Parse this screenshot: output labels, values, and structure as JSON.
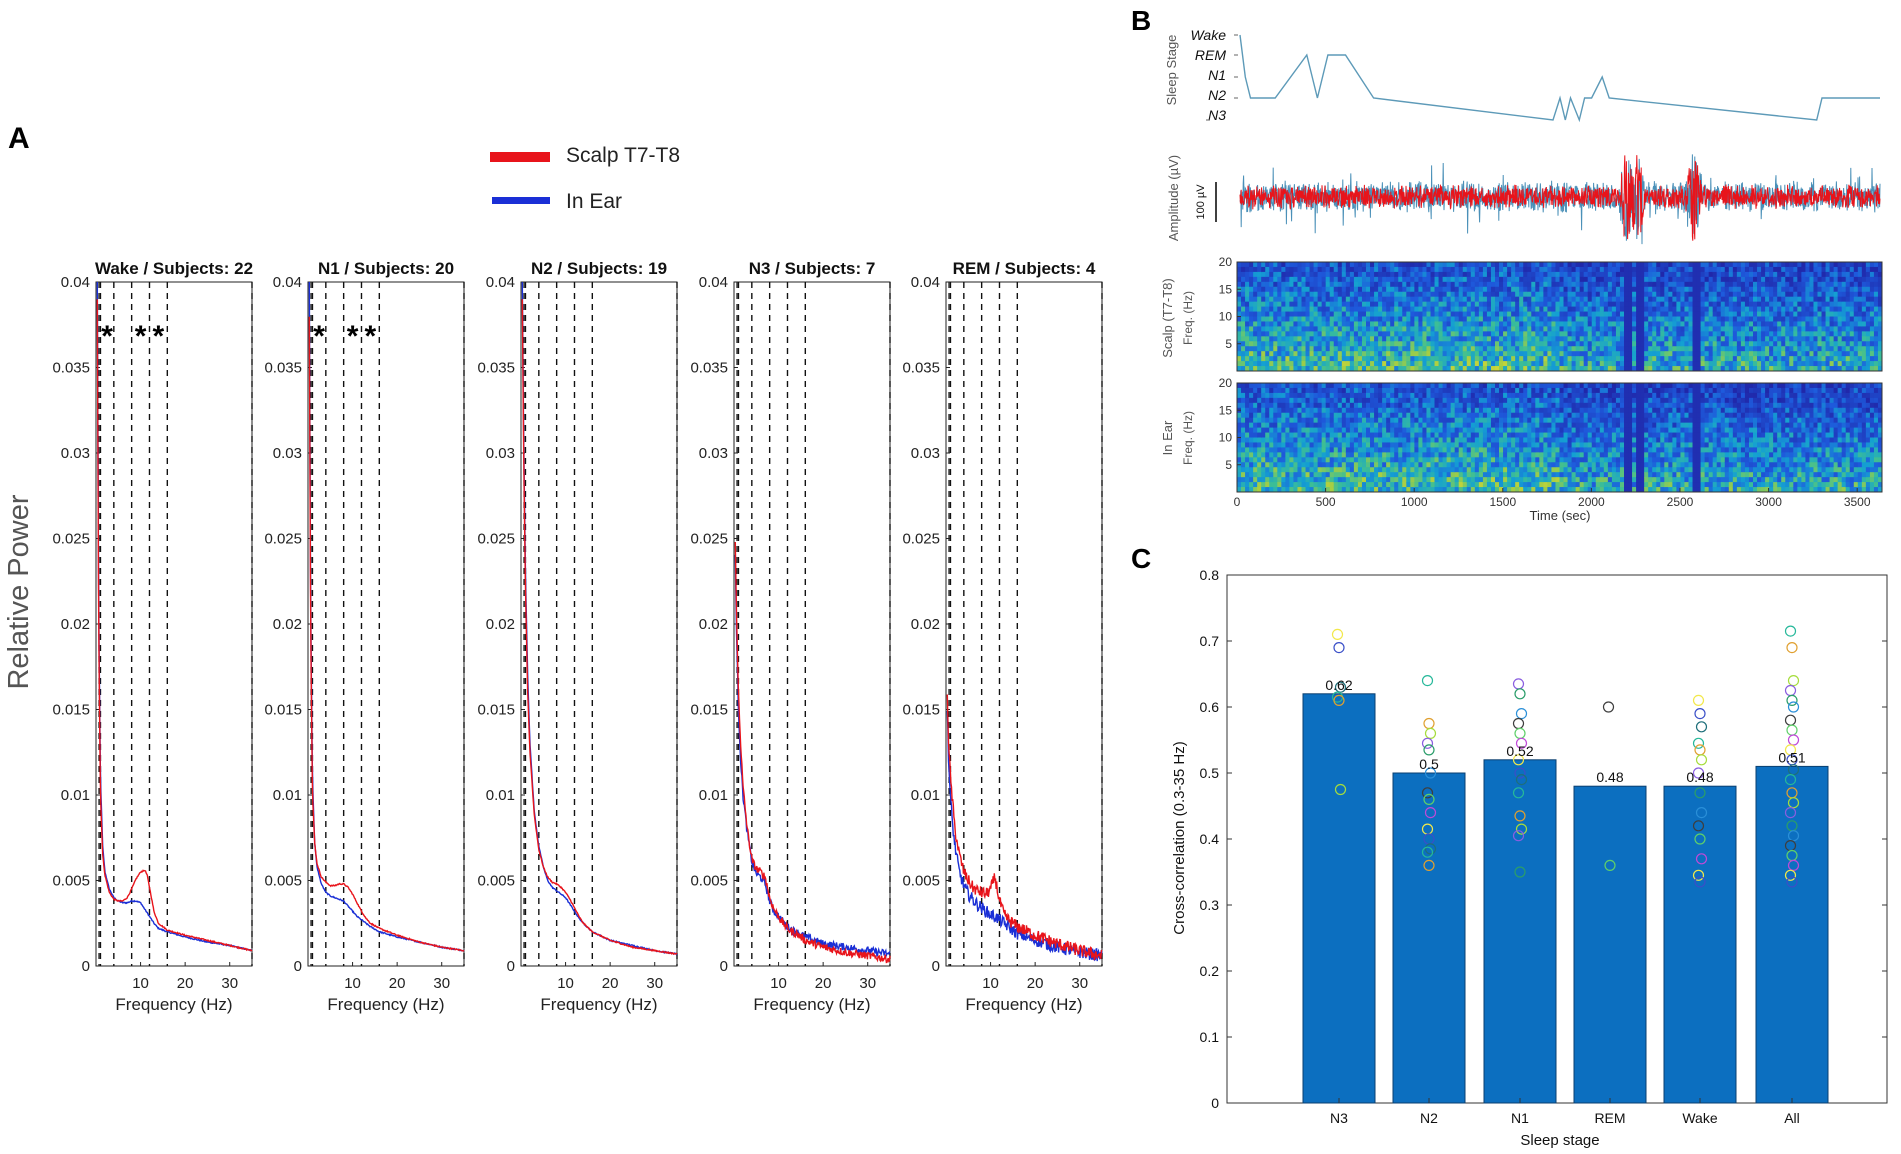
{
  "panels": {
    "a": "A",
    "b": "B",
    "c": "C"
  },
  "colors": {
    "scalp": "#e8141b",
    "ear": "#1a2fd6",
    "bar": "#0c6fc0",
    "trace": "#4a90b8",
    "hypnogram": "#5d9ab8"
  },
  "panel_a": {
    "ylabel": "Relative Power",
    "legend": [
      {
        "label": "Scalp T7-T8",
        "color": "#e8141b"
      },
      {
        "label": "In Ear",
        "color": "#1a2fd6"
      }
    ],
    "yticks": [
      "0",
      "0.005",
      "0.01",
      "0.015",
      "0.02",
      "0.025",
      "0.03",
      "0.035",
      "0.04"
    ],
    "xticks": [
      "10",
      "20",
      "30"
    ],
    "xlabel": "Frequency (Hz)",
    "stars": "*"
  },
  "chart_data": [
    {
      "type": "line",
      "id": "wake",
      "title": "Wake / Subjects: 22",
      "xlabel": "Frequency (Hz)",
      "ylabel": "Relative Power",
      "xlim": [
        0,
        35
      ],
      "ylim": [
        0,
        0.04
      ],
      "band_lines_hz": [
        1,
        4,
        8,
        12,
        16,
        35
      ],
      "significance_marks_hz": [
        2.5,
        10,
        14
      ],
      "series": [
        {
          "name": "Scalp T7-T8",
          "x": [
            0.3,
            0.6,
            1,
            1.5,
            2,
            3,
            4,
            5,
            6,
            7,
            8,
            9,
            10,
            11,
            11.5,
            12,
            13,
            14,
            16,
            20,
            25,
            30,
            35
          ],
          "y": [
            0.039,
            0.02,
            0.01,
            0.0065,
            0.0053,
            0.0043,
            0.0039,
            0.0038,
            0.0038,
            0.004,
            0.0045,
            0.0051,
            0.0055,
            0.0056,
            0.0053,
            0.0046,
            0.0032,
            0.0025,
            0.0021,
            0.0018,
            0.0015,
            0.0012,
            0.0009
          ]
        },
        {
          "name": "In Ear",
          "x": [
            0.3,
            0.6,
            1,
            1.5,
            2,
            3,
            4,
            5,
            6,
            7,
            8,
            9,
            10,
            11,
            12,
            13,
            14,
            16,
            20,
            25,
            30,
            35
          ],
          "y": [
            0.04,
            0.021,
            0.011,
            0.007,
            0.0055,
            0.0045,
            0.004,
            0.0038,
            0.0037,
            0.0037,
            0.0038,
            0.0038,
            0.0037,
            0.0033,
            0.0029,
            0.0025,
            0.0022,
            0.002,
            0.0017,
            0.0014,
            0.0012,
            0.0009
          ]
        }
      ]
    },
    {
      "type": "line",
      "id": "n1",
      "title": "N1 / Subjects: 20",
      "xlabel": "Frequency (Hz)",
      "ylabel": "Relative Power",
      "xlim": [
        0,
        35
      ],
      "ylim": [
        0,
        0.04
      ],
      "band_lines_hz": [
        1,
        4,
        8,
        12,
        16,
        35
      ],
      "significance_marks_hz": [
        2.5,
        10,
        14
      ],
      "series": [
        {
          "name": "Scalp T7-T8",
          "x": [
            0.3,
            0.6,
            1,
            1.5,
            2,
            3,
            4,
            5,
            6,
            7,
            8,
            9,
            10,
            11,
            12,
            13,
            14,
            16,
            20,
            25,
            30,
            35
          ],
          "y": [
            0.038,
            0.02,
            0.01,
            0.0072,
            0.006,
            0.0052,
            0.0049,
            0.0047,
            0.0047,
            0.0048,
            0.0048,
            0.0046,
            0.0042,
            0.0037,
            0.0032,
            0.0028,
            0.0025,
            0.0022,
            0.0018,
            0.0014,
            0.0011,
            0.0009
          ]
        },
        {
          "name": "In Ear",
          "x": [
            0.3,
            0.6,
            1,
            1.5,
            2,
            3,
            4,
            5,
            6,
            7,
            8,
            9,
            10,
            11,
            12,
            13,
            14,
            16,
            20,
            25,
            30,
            35
          ],
          "y": [
            0.04,
            0.021,
            0.011,
            0.0072,
            0.0058,
            0.0048,
            0.0043,
            0.0041,
            0.004,
            0.0039,
            0.0038,
            0.0035,
            0.0032,
            0.0029,
            0.0027,
            0.0025,
            0.0023,
            0.002,
            0.0017,
            0.0014,
            0.0011,
            0.0009
          ]
        }
      ]
    },
    {
      "type": "line",
      "id": "n2",
      "title": "N2 / Subjects: 19",
      "xlabel": "Frequency (Hz)",
      "ylabel": "Relative Power",
      "xlim": [
        0,
        35
      ],
      "ylim": [
        0,
        0.04
      ],
      "band_lines_hz": [
        1,
        4,
        8,
        12,
        16,
        35
      ],
      "significance_marks_hz": [],
      "series": [
        {
          "name": "Scalp T7-T8",
          "x": [
            0.3,
            0.6,
            1,
            1.5,
            2,
            3,
            4,
            5,
            6,
            7,
            8,
            9,
            10,
            11,
            12,
            13,
            14,
            16,
            20,
            25,
            30,
            35
          ],
          "y": [
            0.039,
            0.03,
            0.022,
            0.016,
            0.0125,
            0.0088,
            0.0068,
            0.0058,
            0.0052,
            0.0049,
            0.0048,
            0.0046,
            0.0043,
            0.0039,
            0.0034,
            0.0029,
            0.0025,
            0.002,
            0.0015,
            0.0011,
            0.0009,
            0.0007
          ]
        },
        {
          "name": "In Ear",
          "x": [
            0.3,
            0.6,
            1,
            1.5,
            2,
            3,
            4,
            5,
            6,
            7,
            8,
            9,
            10,
            11,
            12,
            13,
            14,
            16,
            20,
            25,
            30,
            35
          ],
          "y": [
            0.04,
            0.031,
            0.023,
            0.017,
            0.013,
            0.009,
            0.007,
            0.0058,
            0.005,
            0.0046,
            0.0044,
            0.0042,
            0.004,
            0.0036,
            0.0032,
            0.0028,
            0.0025,
            0.002,
            0.0015,
            0.0012,
            0.0009,
            0.0007
          ]
        }
      ]
    },
    {
      "type": "line",
      "id": "n3",
      "title": "N3 / Subjects: 7",
      "xlabel": "Frequency (Hz)",
      "ylabel": "Relative Power",
      "xlim": [
        0,
        35
      ],
      "ylim": [
        0,
        0.04
      ],
      "band_lines_hz": [
        1,
        4,
        8,
        12,
        16,
        35
      ],
      "significance_marks_hz": [],
      "series": [
        {
          "name": "Scalp T7-T8",
          "x": [
            0.3,
            0.6,
            1,
            1.5,
            2,
            3,
            4,
            5,
            6,
            7,
            8,
            9,
            10,
            11,
            12,
            13,
            14,
            16,
            20,
            25,
            30,
            35
          ],
          "y": [
            0.025,
            0.02,
            0.016,
            0.013,
            0.0105,
            0.008,
            0.0062,
            0.0057,
            0.0055,
            0.0052,
            0.004,
            0.0033,
            0.0029,
            0.0025,
            0.0022,
            0.002,
            0.0019,
            0.0015,
            0.0011,
            0.0008,
            0.0006,
            0.0004
          ]
        },
        {
          "name": "In Ear",
          "x": [
            0.3,
            0.6,
            1,
            1.5,
            2,
            3,
            4,
            5,
            6,
            7,
            8,
            9,
            10,
            11,
            12,
            13,
            14,
            16,
            20,
            25,
            30,
            35
          ],
          "y": [
            0.024,
            0.019,
            0.015,
            0.012,
            0.01,
            0.0078,
            0.0061,
            0.0054,
            0.0052,
            0.0048,
            0.0038,
            0.0032,
            0.0029,
            0.0026,
            0.0023,
            0.0021,
            0.002,
            0.0017,
            0.0013,
            0.0011,
            0.0009,
            0.0007
          ]
        }
      ]
    },
    {
      "type": "line",
      "id": "rem",
      "title": "REM / Subjects: 4",
      "xlabel": "Frequency (Hz)",
      "ylabel": "Relative Power",
      "xlim": [
        0,
        35
      ],
      "ylim": [
        0,
        0.04
      ],
      "band_lines_hz": [
        1,
        4,
        8,
        12,
        16,
        35
      ],
      "significance_marks_hz": [],
      "series": [
        {
          "name": "Scalp T7-T8",
          "x": [
            0.3,
            0.6,
            1,
            1.5,
            2,
            3,
            4,
            5,
            6,
            7,
            8,
            9,
            10,
            11,
            12,
            13,
            14,
            16,
            20,
            25,
            30,
            35
          ],
          "y": [
            0.016,
            0.013,
            0.011,
            0.0095,
            0.008,
            0.0065,
            0.0055,
            0.005,
            0.0046,
            0.0044,
            0.0043,
            0.0042,
            0.0045,
            0.0052,
            0.0038,
            0.003,
            0.0027,
            0.0023,
            0.0018,
            0.0013,
            0.0009,
            0.0006
          ]
        },
        {
          "name": "In Ear",
          "x": [
            0.3,
            0.6,
            1,
            1.5,
            2,
            3,
            4,
            5,
            6,
            7,
            8,
            9,
            10,
            11,
            12,
            13,
            14,
            16,
            20,
            25,
            30,
            35
          ],
          "y": [
            0.015,
            0.012,
            0.0098,
            0.0082,
            0.007,
            0.0055,
            0.0047,
            0.0042,
            0.0039,
            0.0036,
            0.0034,
            0.0032,
            0.003,
            0.0029,
            0.0027,
            0.0025,
            0.0023,
            0.0019,
            0.0015,
            0.0011,
            0.0008,
            0.0006
          ]
        }
      ]
    },
    {
      "type": "bar",
      "id": "xcorr",
      "categories": [
        "N3",
        "N2",
        "N1",
        "REM",
        "Wake",
        "All"
      ],
      "values": [
        0.62,
        0.5,
        0.52,
        0.48,
        0.48,
        0.51
      ],
      "value_labels": [
        "0.62",
        "0.5",
        "0.52",
        "0.48",
        "0.48",
        "0.51"
      ],
      "xlabel": "Sleep stage",
      "ylabel": "Cross-correlation (0.3-35 Hz)",
      "ylim": [
        0,
        0.8
      ],
      "yticks": [
        "0",
        "0.1",
        "0.2",
        "0.3",
        "0.4",
        "0.5",
        "0.6",
        "0.7",
        "0.8"
      ],
      "subject_points": [
        [
          0.71,
          0.69,
          0.63,
          0.615,
          0.61,
          0.475
        ],
        [
          0.64,
          0.575,
          0.56,
          0.545,
          0.535,
          0.5,
          0.47,
          0.46,
          0.44,
          0.415,
          0.4,
          0.385,
          0.38,
          0.36
        ],
        [
          0.635,
          0.62,
          0.59,
          0.575,
          0.56,
          0.545,
          0.52,
          0.5,
          0.49,
          0.47,
          0.435,
          0.415,
          0.405,
          0.35
        ],
        [
          0.6,
          0.36
        ],
        [
          0.61,
          0.59,
          0.57,
          0.545,
          0.535,
          0.52,
          0.5,
          0.47,
          0.44,
          0.42,
          0.4,
          0.37,
          0.345,
          0.335
        ],
        [
          0.715,
          0.69,
          0.64,
          0.625,
          0.61,
          0.6,
          0.58,
          0.565,
          0.55,
          0.535,
          0.52,
          0.505,
          0.49,
          0.47,
          0.455,
          0.44,
          0.42,
          0.405,
          0.39,
          0.375,
          0.36,
          0.345,
          0.335
        ]
      ],
      "point_colors": [
        "#f2e84a",
        "#a6dd3c",
        "#5fd06a",
        "#26b89a",
        "#2a8fd8",
        "#3a4fc8",
        "#8a5ee0",
        "#c04ad8",
        "#e0a030",
        "#3e3e3e",
        "#1e6f7a",
        "#2a9d6a"
      ]
    },
    {
      "type": "line",
      "id": "hypnogram",
      "ylabel": "Sleep Stage",
      "stage_labels": [
        "Wake",
        "REM",
        "N1",
        "N2",
        "N3"
      ],
      "x": [
        0,
        30,
        60,
        200,
        380,
        440,
        500,
        540,
        600,
        760,
        1780,
        1820,
        1850,
        1880,
        1930,
        1960,
        2000,
        2060,
        2100,
        3280,
        3310,
        3340,
        3640
      ],
      "stage": [
        "Wake",
        "N1",
        "N2",
        "N2",
        "REM",
        "N2",
        "REM",
        "REM",
        "REM",
        "N2",
        "N3",
        "N2",
        "N3",
        "N2",
        "N3",
        "N2",
        "N2",
        "N1",
        "N2",
        "N3",
        "N2",
        "N2",
        "N2"
      ]
    },
    {
      "type": "line",
      "id": "amplitude",
      "ylabel": "Amplitude (µV)",
      "scale_bar_label": "100 µV",
      "series": [
        {
          "name": "Scalp T7-T8",
          "color": "#e8141b"
        },
        {
          "name": "In Ear",
          "color": "#4a90b8"
        }
      ],
      "artifact_times_sec": [
        2200,
        2260,
        2580
      ]
    },
    {
      "type": "heatmap",
      "id": "spectrogram-scalp",
      "title": "Scalp (T7-T8)",
      "ylabel": "Freq. (Hz)",
      "yticks": [
        "5",
        "10",
        "15",
        "20"
      ],
      "ylim": [
        0,
        20
      ],
      "xlim": [
        0,
        3640
      ]
    },
    {
      "type": "heatmap",
      "id": "spectrogram-ear",
      "title": "In Ear",
      "ylabel": "Freq. (Hz)",
      "yticks": [
        "5",
        "10",
        "15",
        "20"
      ],
      "ylim": [
        0,
        20
      ],
      "xlim": [
        0,
        3640
      ],
      "xlabel": "Time (sec)",
      "xticks": [
        "0",
        "500",
        "1000",
        "1500",
        "2000",
        "2500",
        "3000",
        "3500"
      ]
    }
  ]
}
